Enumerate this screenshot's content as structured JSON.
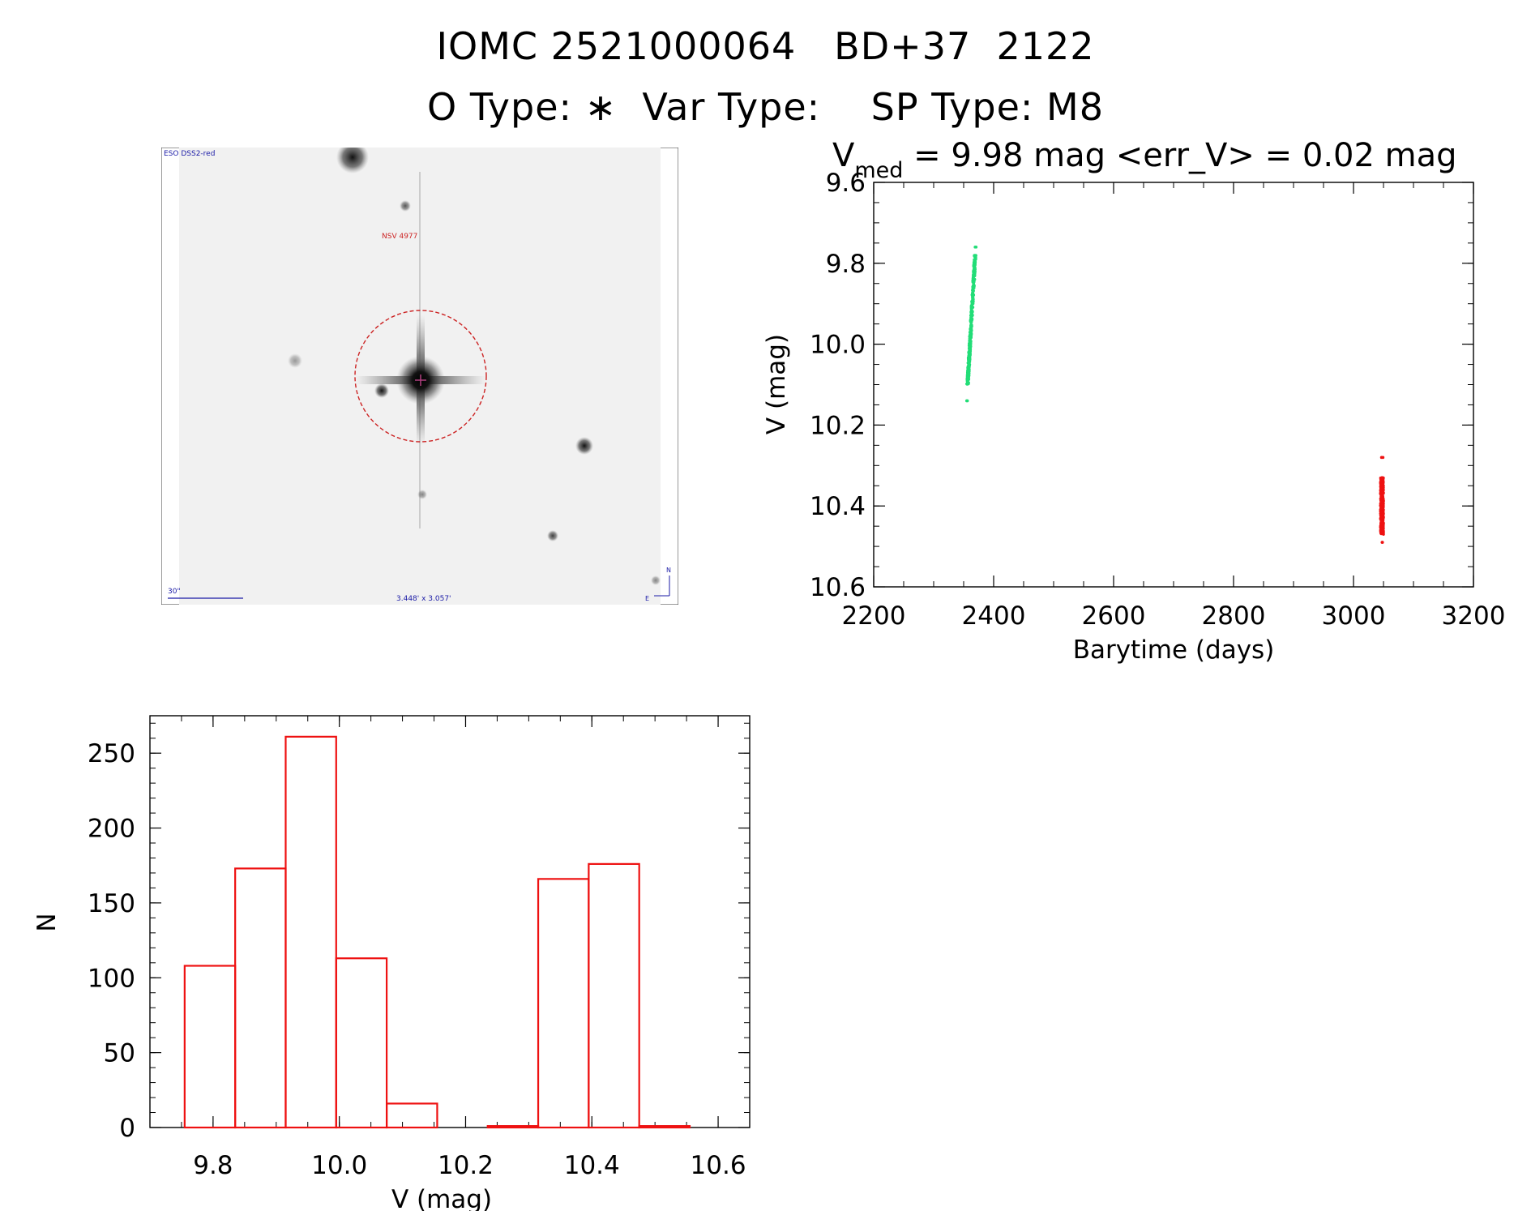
{
  "header": {
    "line1": "IOMC 2521000064   BD+37  2122",
    "line2": "O Type: ∗  Var Type:    SP Type: M8"
  },
  "finder": {
    "survey_label": "ESO DSS2-red",
    "target_label": "NSV 4977",
    "scale_label": "30\"",
    "fov_label": "3.448' x 3.057'",
    "north_label": "N",
    "east_label": "E",
    "colors": {
      "circle": "#cc2222",
      "annotation": "#1a1aa6"
    }
  },
  "chart_data": [
    {
      "type": "scatter",
      "title_parts": {
        "v": "V",
        "sub": "med",
        "rest": " = 9.98 mag <err_V> = 0.02 mag"
      },
      "xlabel": "Barytime (days)",
      "ylabel": "V (mag)",
      "xlim": [
        2200,
        3200
      ],
      "ylim": [
        10.6,
        9.6
      ],
      "y_inverted": true,
      "xticks": [
        2200,
        2400,
        2600,
        2800,
        3000,
        3200
      ],
      "yticks": [
        9.6,
        9.8,
        10.0,
        10.2,
        10.4,
        10.6
      ],
      "series": [
        {
          "color": "#22dd77",
          "x_range": [
            2355,
            2370
          ],
          "v_range": [
            9.76,
            10.14
          ],
          "v_core": [
            9.78,
            10.1
          ]
        },
        {
          "color": "#ee1111",
          "x_range": [
            3045,
            3050
          ],
          "v_range": [
            10.28,
            10.49
          ],
          "v_core": [
            10.33,
            10.47
          ]
        }
      ]
    },
    {
      "type": "bar",
      "subtype": "histogram",
      "xlabel": "V (mag)",
      "ylabel": "N",
      "xlim": [
        9.7,
        10.65
      ],
      "ylim": [
        0,
        275
      ],
      "xticks": [
        9.8,
        10.0,
        10.2,
        10.4,
        10.6
      ],
      "yticks": [
        0,
        50,
        100,
        150,
        200,
        250
      ],
      "bin_edges": [
        9.755,
        9.835,
        9.915,
        9.995,
        10.075,
        10.155,
        10.235,
        10.315,
        10.395,
        10.475,
        10.555
      ],
      "counts": [
        108,
        173,
        261,
        113,
        16,
        0,
        1,
        166,
        176,
        1
      ],
      "color": "#ee1111"
    }
  ]
}
